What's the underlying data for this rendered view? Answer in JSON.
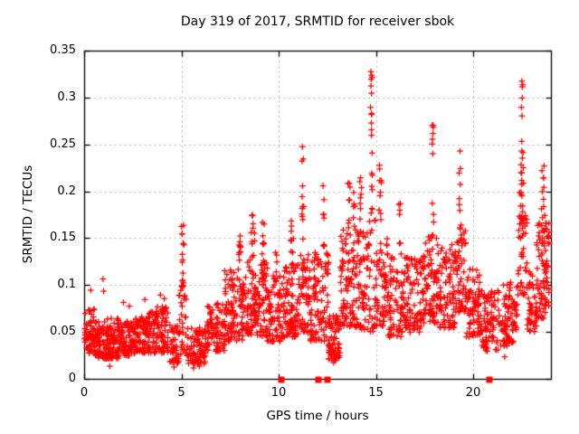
{
  "page": {
    "background": "#ffffff"
  },
  "chart_data": {
    "type": "scatter",
    "title": "Day 319 of 2017, SRMTID for receiver sbok",
    "xlabel": "GPS time / hours",
    "ylabel": "SRMTID / TECUs",
    "xlim": [
      0,
      24
    ],
    "ylim": [
      0,
      0.35
    ],
    "xticks": [
      0,
      5,
      10,
      15,
      20
    ],
    "xtick_labels": [
      "0",
      "5",
      "10",
      "15",
      "20"
    ],
    "yticks": [
      0,
      0.05,
      0.1,
      0.15,
      0.2,
      0.25,
      0.3,
      0.35
    ],
    "ytick_labels": [
      "0",
      "0.05",
      "0.1",
      "0.15",
      "0.2",
      "0.25",
      "0.3",
      "0.35"
    ],
    "grid": true,
    "legend": "none",
    "grid_color": "#b5b5b5",
    "frame_color": "#000000",
    "text_color": "#000000",
    "marker_color": "#ff0000",
    "series": [
      {
        "name": "srmtid-scatter",
        "marker": "plus",
        "seed": 319,
        "density_bands": [
          [
            0.0,
            0.5,
            55,
            0.028,
            0.075
          ],
          [
            0.5,
            1.1,
            70,
            0.022,
            0.062
          ],
          [
            1.1,
            1.8,
            85,
            0.022,
            0.068
          ],
          [
            1.8,
            2.6,
            90,
            0.025,
            0.062
          ],
          [
            2.6,
            3.5,
            100,
            0.028,
            0.072
          ],
          [
            3.5,
            4.35,
            90,
            0.028,
            0.078
          ],
          [
            4.35,
            4.85,
            40,
            0.016,
            0.058
          ],
          [
            4.85,
            5.3,
            32,
            0.025,
            0.1
          ],
          [
            5.3,
            6.3,
            85,
            0.016,
            0.055
          ],
          [
            6.3,
            7.2,
            85,
            0.03,
            0.082
          ],
          [
            7.2,
            8.3,
            110,
            0.04,
            0.118
          ],
          [
            8.3,
            9.4,
            120,
            0.045,
            0.13
          ],
          [
            9.4,
            10.25,
            80,
            0.04,
            0.112
          ],
          [
            10.25,
            11.0,
            85,
            0.045,
            0.125
          ],
          [
            11.0,
            11.6,
            60,
            0.05,
            0.135
          ],
          [
            11.6,
            12.55,
            95,
            0.04,
            0.135
          ],
          [
            12.55,
            13.15,
            70,
            0.02,
            0.068
          ],
          [
            13.15,
            14.0,
            95,
            0.055,
            0.16
          ],
          [
            14.0,
            15.0,
            90,
            0.05,
            0.17
          ],
          [
            15.0,
            15.6,
            60,
            0.055,
            0.15
          ],
          [
            15.6,
            16.55,
            85,
            0.045,
            0.135
          ],
          [
            16.55,
            17.4,
            80,
            0.05,
            0.13
          ],
          [
            17.4,
            18.2,
            85,
            0.06,
            0.155
          ],
          [
            18.2,
            19.1,
            90,
            0.055,
            0.145
          ],
          [
            19.1,
            19.6,
            55,
            0.07,
            0.165
          ],
          [
            19.6,
            20.4,
            75,
            0.045,
            0.12
          ],
          [
            20.4,
            21.3,
            80,
            0.03,
            0.095
          ],
          [
            21.3,
            22.25,
            85,
            0.035,
            0.105
          ],
          [
            22.25,
            22.75,
            45,
            0.09,
            0.2
          ],
          [
            22.75,
            23.25,
            45,
            0.05,
            0.115
          ],
          [
            23.25,
            23.9,
            90,
            0.065,
            0.175
          ]
        ],
        "spike_columns": [
          [
            5.05,
            0.12,
            14,
            0.095,
            0.165
          ],
          [
            7.95,
            0.15,
            10,
            0.115,
            0.158
          ],
          [
            8.65,
            0.2,
            12,
            0.13,
            0.178
          ],
          [
            9.2,
            0.15,
            8,
            0.13,
            0.168
          ],
          [
            9.85,
            0.12,
            6,
            0.1,
            0.138
          ],
          [
            10.65,
            0.18,
            10,
            0.12,
            0.172
          ],
          [
            11.22,
            0.1,
            10,
            0.135,
            0.248
          ],
          [
            12.3,
            0.12,
            8,
            0.135,
            0.21
          ],
          [
            13.6,
            0.15,
            8,
            0.16,
            0.225
          ],
          [
            13.85,
            0.1,
            6,
            0.15,
            0.2
          ],
          [
            14.2,
            0.12,
            8,
            0.17,
            0.215
          ],
          [
            14.75,
            0.1,
            16,
            0.17,
            0.328
          ],
          [
            15.2,
            0.12,
            10,
            0.17,
            0.245
          ],
          [
            16.2,
            0.1,
            6,
            0.13,
            0.196
          ],
          [
            17.9,
            0.12,
            10,
            0.15,
            0.271
          ],
          [
            19.3,
            0.12,
            9,
            0.16,
            0.245
          ],
          [
            22.5,
            0.13,
            22,
            0.13,
            0.318
          ],
          [
            23.55,
            0.15,
            10,
            0.17,
            0.24
          ]
        ],
        "outlier_points": [
          [
            0.32,
            0.095
          ],
          [
            0.95,
            0.107
          ],
          [
            0.98,
            0.094
          ],
          [
            2.0,
            0.082
          ],
          [
            2.3,
            0.078
          ],
          [
            3.1,
            0.085
          ],
          [
            3.9,
            0.09
          ],
          [
            4.1,
            0.086
          ],
          [
            4.98,
            0.163
          ],
          [
            5.02,
            0.155
          ],
          [
            11.2,
            0.248
          ],
          [
            11.25,
            0.235
          ],
          [
            14.72,
            0.328
          ],
          [
            14.78,
            0.322
          ],
          [
            14.75,
            0.305
          ],
          [
            14.7,
            0.29
          ],
          [
            17.92,
            0.271
          ],
          [
            17.88,
            0.256
          ],
          [
            22.48,
            0.318
          ],
          [
            22.53,
            0.314
          ],
          [
            22.5,
            0.3
          ],
          [
            22.46,
            0.29
          ],
          [
            1.3,
            0.014
          ],
          [
            4.6,
            0.013
          ],
          [
            5.6,
            0.012
          ],
          [
            5.9,
            0.014
          ],
          [
            12.8,
            0.018
          ],
          [
            21.6,
            0.024
          ]
        ]
      },
      {
        "name": "zero-event-markers",
        "marker": "filled-square",
        "points": [
          [
            10.07,
            0
          ],
          [
            11.98,
            0
          ],
          [
            12.45,
            0
          ],
          [
            20.8,
            0
          ]
        ]
      }
    ]
  }
}
